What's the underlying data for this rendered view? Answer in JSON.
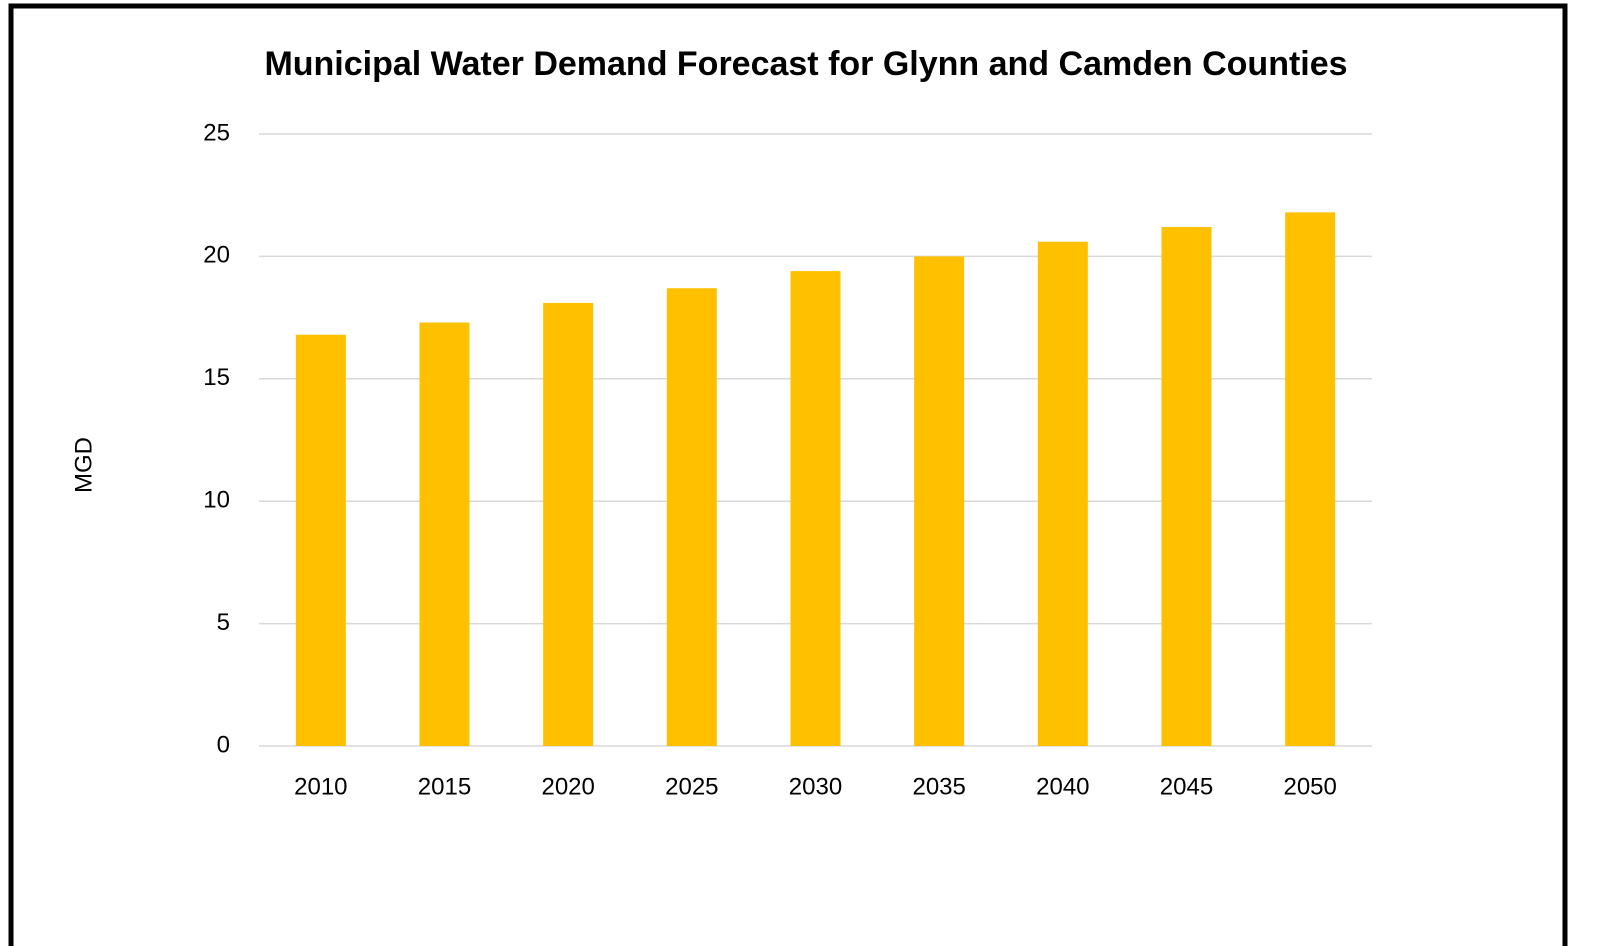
{
  "chart_data": {
    "type": "bar",
    "title": "Municipal Water Demand Forecast for Glynn and Camden Counties",
    "y_label": "MGD",
    "categories": [
      "2010",
      "2015",
      "2020",
      "2025",
      "2030",
      "2035",
      "2040",
      "2045",
      "2050"
    ],
    "values": [
      16.8,
      17.3,
      18.1,
      18.7,
      19.4,
      20.0,
      20.6,
      21.2,
      21.8
    ],
    "color": "#ffc000",
    "ylim": [
      0,
      25
    ],
    "yticks": [
      0,
      5,
      10,
      15,
      20,
      25
    ],
    "grid": true
  }
}
